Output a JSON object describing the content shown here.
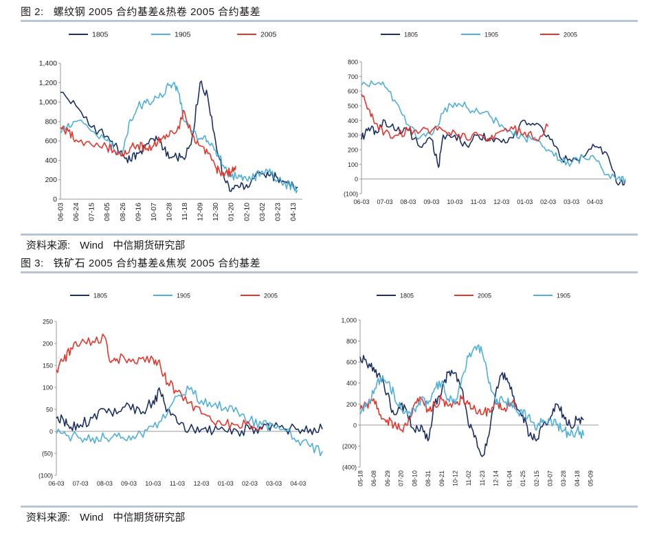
{
  "figure2": {
    "number": "图 2:",
    "title": "螺纹钢 2005 合约基差&热卷 2005 合约基差"
  },
  "figure3": {
    "number": "图 3:",
    "title": "铁矿石 2005 合约基差&焦炭 2005 合约基差"
  },
  "source": {
    "label": "资料来源:",
    "name1": "Wind",
    "name2": "中信期货研究部"
  },
  "colors": {
    "1805": "#1b2f63",
    "1905": "#4eafd9",
    "2005": "#e4352b"
  },
  "chart_data": [
    {
      "type": "line",
      "ylim": [
        0,
        1400
      ],
      "yticks": [
        0,
        200,
        400,
        600,
        800,
        "1,000",
        "1,200",
        "1,400"
      ],
      "x_labels": [
        "06-03",
        "06-24",
        "07-15",
        "08-05",
        "08-26",
        "09-16",
        "10-07",
        "10-28",
        "11-18",
        "12-09",
        "12-30",
        "01-20",
        "02-10",
        "03-02",
        "03-23",
        "04-13"
      ],
      "legend": [
        "1805",
        "1905",
        "2005"
      ],
      "series": [
        {
          "name": "1805",
          "x": [
            0,
            1,
            2,
            3,
            3.5,
            4,
            4.5,
            5,
            5.5,
            6,
            6.5,
            7,
            7.5,
            8,
            8.5,
            9,
            9.5,
            10,
            10.5,
            11,
            11.5,
            12,
            12.5,
            13,
            13.5,
            14,
            14.5,
            15,
            15.3
          ],
          "values": [
            1100,
            960,
            740,
            650,
            560,
            450,
            400,
            470,
            560,
            620,
            580,
            420,
            430,
            410,
            650,
            1200,
            1050,
            600,
            250,
            80,
            120,
            150,
            220,
            260,
            240,
            220,
            180,
            150,
            120
          ]
        },
        {
          "name": "1905",
          "x": [
            0,
            0.5,
            1,
            2,
            3,
            3.5,
            4,
            4.5,
            5,
            5.5,
            6,
            6.5,
            7,
            7.3,
            7.6,
            8,
            8.5,
            9,
            9.5,
            10,
            10.5,
            11,
            11.5,
            12,
            12.5,
            13,
            13.5,
            14,
            14.5,
            15,
            15.3
          ],
          "values": [
            680,
            780,
            800,
            700,
            600,
            500,
            480,
            820,
            950,
            990,
            1010,
            1070,
            1170,
            1200,
            1100,
            800,
            700,
            620,
            600,
            500,
            350,
            230,
            250,
            200,
            220,
            290,
            310,
            200,
            160,
            120,
            90
          ]
        },
        {
          "name": "2005",
          "x": [
            0,
            0.5,
            1,
            2,
            3,
            3.5,
            4,
            4.5,
            5,
            5.5,
            6,
            6.5,
            7,
            7.5,
            8,
            8.5,
            9,
            9.5,
            10,
            10.3,
            10.6,
            11,
            11.3
          ],
          "values": [
            740,
            700,
            610,
            560,
            530,
            500,
            470,
            530,
            560,
            510,
            550,
            620,
            650,
            700,
            900,
            650,
            550,
            470,
            330,
            270,
            260,
            280,
            340
          ]
        }
      ]
    },
    {
      "type": "line",
      "ylim": [
        -100,
        800
      ],
      "yticks": [
        800,
        700,
        600,
        500,
        400,
        300,
        200,
        100,
        0,
        "(100)"
      ],
      "x_labels": [
        "06-03",
        "07-03",
        "08-03",
        "09-03",
        "10-03",
        "11-03",
        "12-03",
        "01-03",
        "02-03",
        "03-03",
        "04-03"
      ],
      "legend": [
        "1805",
        "1905",
        "2005"
      ],
      "series": [
        {
          "name": "1805",
          "x": [
            0,
            0.3,
            0.6,
            1,
            1.5,
            2,
            2.5,
            3,
            3.3,
            3.5,
            4,
            4.5,
            5,
            5.5,
            6,
            6.5,
            7,
            7.5,
            8,
            8.5,
            9,
            9.5,
            10,
            10.5,
            11,
            11.3
          ],
          "values": [
            270,
            350,
            330,
            400,
            330,
            330,
            220,
            270,
            80,
            300,
            300,
            230,
            300,
            280,
            250,
            280,
            400,
            380,
            300,
            150,
            120,
            150,
            220,
            180,
            -40,
            -10
          ]
        },
        {
          "name": "1905",
          "x": [
            0,
            0.5,
            1,
            1.5,
            2,
            2.5,
            3,
            3.5,
            4,
            4.5,
            5,
            5.5,
            6,
            6.5,
            7,
            7.5,
            8,
            8.5,
            9,
            9.5,
            10,
            10.5,
            11,
            11.3
          ],
          "values": [
            640,
            650,
            630,
            520,
            370,
            280,
            300,
            450,
            520,
            490,
            460,
            430,
            370,
            300,
            280,
            260,
            200,
            130,
            110,
            150,
            140,
            30,
            10,
            0
          ]
        },
        {
          "name": "2005",
          "x": [
            0,
            0.3,
            0.6,
            1,
            1.5,
            2,
            2.5,
            3,
            3.5,
            4,
            4.5,
            5,
            5.5,
            6,
            6.5,
            7,
            7.5,
            8
          ],
          "values": [
            580,
            480,
            380,
            320,
            300,
            330,
            320,
            330,
            330,
            320,
            270,
            300,
            260,
            330,
            340,
            320,
            270,
            360
          ]
        }
      ]
    },
    {
      "type": "line",
      "ylim": [
        -100,
        250
      ],
      "yticks": [
        250,
        200,
        150,
        100,
        50,
        0,
        "(50)",
        "(100)"
      ],
      "x_labels": [
        "06-03",
        "07-03",
        "08-03",
        "09-03",
        "10-03",
        "11-03",
        "12-03",
        "01-03",
        "02-03",
        "03-03",
        "04-03"
      ],
      "legend": [
        "1805",
        "1905",
        "2005"
      ],
      "series": [
        {
          "name": "1805",
          "x": [
            0,
            0.3,
            0.6,
            1,
            1.5,
            2,
            2.5,
            3,
            3.5,
            4,
            4.3,
            4.6,
            5,
            5.5,
            6,
            6.5,
            7,
            7.5,
            8,
            8.5,
            9,
            9.5,
            10,
            10.5,
            11
          ],
          "values": [
            30,
            25,
            10,
            15,
            30,
            50,
            40,
            60,
            40,
            70,
            90,
            50,
            20,
            5,
            5,
            0,
            0,
            0,
            5,
            5,
            10,
            5,
            5,
            5,
            5
          ]
        },
        {
          "name": "1905",
          "x": [
            0,
            0.5,
            1,
            1.5,
            2,
            2.5,
            3,
            3.5,
            4,
            4.5,
            5,
            5.5,
            6,
            6.5,
            7,
            7.5,
            8,
            8.5,
            9,
            9.5,
            10,
            10.5,
            11
          ],
          "values": [
            -5,
            -10,
            -15,
            -15,
            -15,
            -12,
            -10,
            -5,
            10,
            30,
            80,
            95,
            70,
            60,
            55,
            45,
            25,
            15,
            10,
            0,
            -20,
            -35,
            -45
          ]
        },
        {
          "name": "2005",
          "x": [
            0,
            0.3,
            0.6,
            1,
            1.5,
            2,
            2.2,
            2.5,
            3,
            3.5,
            4,
            4.3,
            4.6,
            5,
            5.5,
            6,
            6.5,
            7,
            7.5,
            8,
            8.5
          ],
          "values": [
            140,
            160,
            190,
            200,
            205,
            215,
            160,
            165,
            165,
            165,
            165,
            150,
            110,
            90,
            65,
            40,
            20,
            15,
            15,
            15,
            10
          ]
        }
      ]
    },
    {
      "type": "line",
      "ylim": [
        -400,
        1000
      ],
      "yticks": [
        "1,000",
        800,
        600,
        400,
        200,
        0,
        "(200)",
        "(400)"
      ],
      "x_labels": [
        "05-18",
        "06-08",
        "06-29",
        "07-20",
        "08-10",
        "08-31",
        "09-21",
        "10-12",
        "11-02",
        "11-23",
        "12-14",
        "01-04",
        "01-25",
        "02-15",
        "03-07",
        "03-28",
        "04-18",
        "05-09"
      ],
      "legend": [
        "1805",
        "2005",
        "1905"
      ],
      "series": [
        {
          "name": "1805",
          "x": [
            0,
            0.5,
            1,
            1.5,
            2,
            2.5,
            3,
            3.5,
            4,
            4.5,
            5,
            5.5,
            6,
            6.5,
            7,
            7.5,
            8,
            8.5,
            9,
            9.5,
            10,
            10.5,
            11,
            11.5,
            12,
            12.5,
            13,
            13.5,
            14,
            14.5,
            15,
            15.5,
            16,
            16.5
          ],
          "values": [
            650,
            580,
            550,
            450,
            300,
            100,
            200,
            100,
            -50,
            0,
            -150,
            200,
            300,
            500,
            500,
            350,
            0,
            -100,
            -300,
            -100,
            300,
            500,
            400,
            200,
            100,
            -100,
            -150,
            0,
            50,
            200,
            100,
            0,
            50,
            50
          ]
        },
        {
          "name": "2005",
          "x": [
            0,
            0.5,
            1,
            1.5,
            2,
            2.5,
            3,
            3.5,
            4,
            4.5,
            5,
            5.5,
            6,
            6.5,
            7,
            7.5,
            8,
            8.5,
            9,
            9.5,
            10,
            10.5,
            11,
            11.5
          ],
          "values": [
            150,
            200,
            250,
            100,
            50,
            0,
            -50,
            0,
            200,
            250,
            150,
            200,
            250,
            180,
            200,
            250,
            200,
            150,
            100,
            150,
            200,
            150,
            180,
            200
          ]
        },
        {
          "name": "1905",
          "x": [
            0,
            0.5,
            1,
            1.5,
            2,
            2.5,
            3,
            3.5,
            4,
            4.5,
            5,
            5.5,
            6,
            6.5,
            7,
            7.5,
            8,
            8.5,
            9,
            9.5,
            10,
            10.5,
            11,
            11.5,
            12,
            12.5,
            13,
            13.5,
            14,
            14.5,
            15,
            15.5,
            16,
            16.5
          ],
          "values": [
            100,
            200,
            300,
            450,
            400,
            300,
            150,
            100,
            150,
            250,
            200,
            350,
            400,
            250,
            200,
            450,
            650,
            750,
            700,
            400,
            200,
            250,
            200,
            150,
            100,
            100,
            -50,
            50,
            50,
            0,
            -50,
            -100,
            -50,
            -100
          ]
        }
      ]
    }
  ]
}
